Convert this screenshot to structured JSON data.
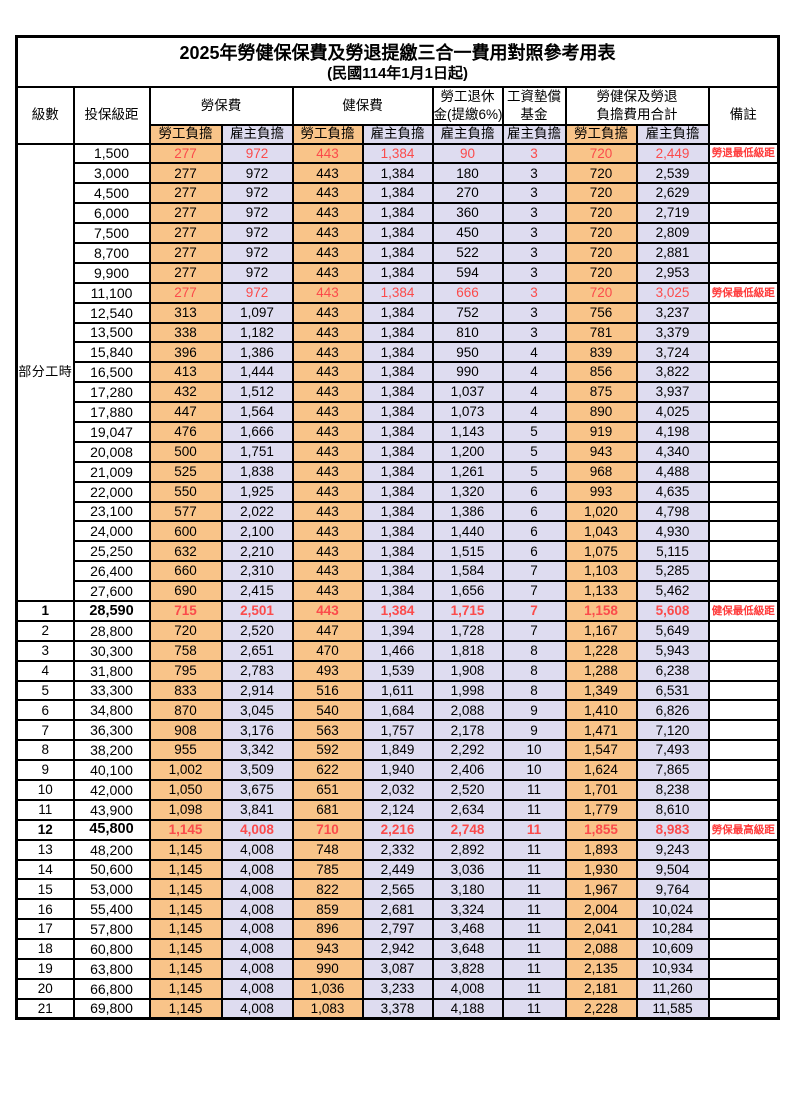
{
  "title": "2025年勞健保保費及勞退提繳三合一費用對照參考用表",
  "subtitle": "(民國114年1月1日起)",
  "header": {
    "level": "級數",
    "bracket": "投保級距",
    "labor_insurance": "勞保費",
    "health_insurance": "健保費",
    "pension_line1": "勞工退休",
    "pension_line2": "金(提繳6%)",
    "wage_fund_line1": "工資墊償",
    "wage_fund_line2": "基金",
    "total_line1": "勞健保及勞退",
    "total_line2": "負擔費用合計",
    "remark": "備註",
    "employee_burden": "勞工負擔",
    "employer_burden": "雇主負擔"
  },
  "group_label_part_time": "部分工時",
  "colors": {
    "employee_col_bg": "#f9c489",
    "employer_col_bg": "#dedcf0",
    "highlight_value_red": "#fb4b4b",
    "remark_red": "#ff3b3b",
    "border": "#000000"
  },
  "part_time_row_count": 23,
  "rows": [
    {
      "level": "",
      "bracket": "1,500",
      "values": [
        "277",
        "972",
        "443",
        "1,384",
        "90",
        "3",
        "720",
        "2,449"
      ],
      "remark": "勞退最低級距",
      "red": true,
      "bold": false
    },
    {
      "level": "",
      "bracket": "3,000",
      "values": [
        "277",
        "972",
        "443",
        "1,384",
        "180",
        "3",
        "720",
        "2,539"
      ],
      "remark": "",
      "red": false,
      "bold": false
    },
    {
      "level": "",
      "bracket": "4,500",
      "values": [
        "277",
        "972",
        "443",
        "1,384",
        "270",
        "3",
        "720",
        "2,629"
      ],
      "remark": "",
      "red": false,
      "bold": false
    },
    {
      "level": "",
      "bracket": "6,000",
      "values": [
        "277",
        "972",
        "443",
        "1,384",
        "360",
        "3",
        "720",
        "2,719"
      ],
      "remark": "",
      "red": false,
      "bold": false
    },
    {
      "level": "",
      "bracket": "7,500",
      "values": [
        "277",
        "972",
        "443",
        "1,384",
        "450",
        "3",
        "720",
        "2,809"
      ],
      "remark": "",
      "red": false,
      "bold": false
    },
    {
      "level": "",
      "bracket": "8,700",
      "values": [
        "277",
        "972",
        "443",
        "1,384",
        "522",
        "3",
        "720",
        "2,881"
      ],
      "remark": "",
      "red": false,
      "bold": false
    },
    {
      "level": "",
      "bracket": "9,900",
      "values": [
        "277",
        "972",
        "443",
        "1,384",
        "594",
        "3",
        "720",
        "2,953"
      ],
      "remark": "",
      "red": false,
      "bold": false
    },
    {
      "level": "",
      "bracket": "11,100",
      "values": [
        "277",
        "972",
        "443",
        "1,384",
        "666",
        "3",
        "720",
        "3,025"
      ],
      "remark": "勞保最低級距",
      "red": true,
      "bold": false
    },
    {
      "level": "",
      "bracket": "12,540",
      "values": [
        "313",
        "1,097",
        "443",
        "1,384",
        "752",
        "3",
        "756",
        "3,237"
      ],
      "remark": "",
      "red": false,
      "bold": false
    },
    {
      "level": "",
      "bracket": "13,500",
      "values": [
        "338",
        "1,182",
        "443",
        "1,384",
        "810",
        "3",
        "781",
        "3,379"
      ],
      "remark": "",
      "red": false,
      "bold": false
    },
    {
      "level": "",
      "bracket": "15,840",
      "values": [
        "396",
        "1,386",
        "443",
        "1,384",
        "950",
        "4",
        "839",
        "3,724"
      ],
      "remark": "",
      "red": false,
      "bold": false
    },
    {
      "level": "",
      "bracket": "16,500",
      "values": [
        "413",
        "1,444",
        "443",
        "1,384",
        "990",
        "4",
        "856",
        "3,822"
      ],
      "remark": "",
      "red": false,
      "bold": false
    },
    {
      "level": "",
      "bracket": "17,280",
      "values": [
        "432",
        "1,512",
        "443",
        "1,384",
        "1,037",
        "4",
        "875",
        "3,937"
      ],
      "remark": "",
      "red": false,
      "bold": false
    },
    {
      "level": "",
      "bracket": "17,880",
      "values": [
        "447",
        "1,564",
        "443",
        "1,384",
        "1,073",
        "4",
        "890",
        "4,025"
      ],
      "remark": "",
      "red": false,
      "bold": false
    },
    {
      "level": "",
      "bracket": "19,047",
      "values": [
        "476",
        "1,666",
        "443",
        "1,384",
        "1,143",
        "5",
        "919",
        "4,198"
      ],
      "remark": "",
      "red": false,
      "bold": false
    },
    {
      "level": "",
      "bracket": "20,008",
      "values": [
        "500",
        "1,751",
        "443",
        "1,384",
        "1,200",
        "5",
        "943",
        "4,340"
      ],
      "remark": "",
      "red": false,
      "bold": false
    },
    {
      "level": "",
      "bracket": "21,009",
      "values": [
        "525",
        "1,838",
        "443",
        "1,384",
        "1,261",
        "5",
        "968",
        "4,488"
      ],
      "remark": "",
      "red": false,
      "bold": false
    },
    {
      "level": "",
      "bracket": "22,000",
      "values": [
        "550",
        "1,925",
        "443",
        "1,384",
        "1,320",
        "6",
        "993",
        "4,635"
      ],
      "remark": "",
      "red": false,
      "bold": false
    },
    {
      "level": "",
      "bracket": "23,100",
      "values": [
        "577",
        "2,022",
        "443",
        "1,384",
        "1,386",
        "6",
        "1,020",
        "4,798"
      ],
      "remark": "",
      "red": false,
      "bold": false
    },
    {
      "level": "",
      "bracket": "24,000",
      "values": [
        "600",
        "2,100",
        "443",
        "1,384",
        "1,440",
        "6",
        "1,043",
        "4,930"
      ],
      "remark": "",
      "red": false,
      "bold": false
    },
    {
      "level": "",
      "bracket": "25,250",
      "values": [
        "632",
        "2,210",
        "443",
        "1,384",
        "1,515",
        "6",
        "1,075",
        "5,115"
      ],
      "remark": "",
      "red": false,
      "bold": false
    },
    {
      "level": "",
      "bracket": "26,400",
      "values": [
        "660",
        "2,310",
        "443",
        "1,384",
        "1,584",
        "7",
        "1,103",
        "5,285"
      ],
      "remark": "",
      "red": false,
      "bold": false
    },
    {
      "level": "",
      "bracket": "27,600",
      "values": [
        "690",
        "2,415",
        "443",
        "1,384",
        "1,656",
        "7",
        "1,133",
        "5,462"
      ],
      "remark": "",
      "red": false,
      "bold": false
    },
    {
      "level": "1",
      "bracket": "28,590",
      "values": [
        "715",
        "2,501",
        "443",
        "1,384",
        "1,715",
        "7",
        "1,158",
        "5,608"
      ],
      "remark": "健保最低級距",
      "red": true,
      "bold": true
    },
    {
      "level": "2",
      "bracket": "28,800",
      "values": [
        "720",
        "2,520",
        "447",
        "1,394",
        "1,728",
        "7",
        "1,167",
        "5,649"
      ],
      "remark": "",
      "red": false,
      "bold": false
    },
    {
      "level": "3",
      "bracket": "30,300",
      "values": [
        "758",
        "2,651",
        "470",
        "1,466",
        "1,818",
        "8",
        "1,228",
        "5,943"
      ],
      "remark": "",
      "red": false,
      "bold": false
    },
    {
      "level": "4",
      "bracket": "31,800",
      "values": [
        "795",
        "2,783",
        "493",
        "1,539",
        "1,908",
        "8",
        "1,288",
        "6,238"
      ],
      "remark": "",
      "red": false,
      "bold": false
    },
    {
      "level": "5",
      "bracket": "33,300",
      "values": [
        "833",
        "2,914",
        "516",
        "1,611",
        "1,998",
        "8",
        "1,349",
        "6,531"
      ],
      "remark": "",
      "red": false,
      "bold": false
    },
    {
      "level": "6",
      "bracket": "34,800",
      "values": [
        "870",
        "3,045",
        "540",
        "1,684",
        "2,088",
        "9",
        "1,410",
        "6,826"
      ],
      "remark": "",
      "red": false,
      "bold": false
    },
    {
      "level": "7",
      "bracket": "36,300",
      "values": [
        "908",
        "3,176",
        "563",
        "1,757",
        "2,178",
        "9",
        "1,471",
        "7,120"
      ],
      "remark": "",
      "red": false,
      "bold": false
    },
    {
      "level": "8",
      "bracket": "38,200",
      "values": [
        "955",
        "3,342",
        "592",
        "1,849",
        "2,292",
        "10",
        "1,547",
        "7,493"
      ],
      "remark": "",
      "red": false,
      "bold": false
    },
    {
      "level": "9",
      "bracket": "40,100",
      "values": [
        "1,002",
        "3,509",
        "622",
        "1,940",
        "2,406",
        "10",
        "1,624",
        "7,865"
      ],
      "remark": "",
      "red": false,
      "bold": false
    },
    {
      "level": "10",
      "bracket": "42,000",
      "values": [
        "1,050",
        "3,675",
        "651",
        "2,032",
        "2,520",
        "11",
        "1,701",
        "8,238"
      ],
      "remark": "",
      "red": false,
      "bold": false
    },
    {
      "level": "11",
      "bracket": "43,900",
      "values": [
        "1,098",
        "3,841",
        "681",
        "2,124",
        "2,634",
        "11",
        "1,779",
        "8,610"
      ],
      "remark": "",
      "red": false,
      "bold": false
    },
    {
      "level": "12",
      "bracket": "45,800",
      "values": [
        "1,145",
        "4,008",
        "710",
        "2,216",
        "2,748",
        "11",
        "1,855",
        "8,983"
      ],
      "remark": "勞保最高級距",
      "red": true,
      "bold": true
    },
    {
      "level": "13",
      "bracket": "48,200",
      "values": [
        "1,145",
        "4,008",
        "748",
        "2,332",
        "2,892",
        "11",
        "1,893",
        "9,243"
      ],
      "remark": "",
      "red": false,
      "bold": false
    },
    {
      "level": "14",
      "bracket": "50,600",
      "values": [
        "1,145",
        "4,008",
        "785",
        "2,449",
        "3,036",
        "11",
        "1,930",
        "9,504"
      ],
      "remark": "",
      "red": false,
      "bold": false
    },
    {
      "level": "15",
      "bracket": "53,000",
      "values": [
        "1,145",
        "4,008",
        "822",
        "2,565",
        "3,180",
        "11",
        "1,967",
        "9,764"
      ],
      "remark": "",
      "red": false,
      "bold": false
    },
    {
      "level": "16",
      "bracket": "55,400",
      "values": [
        "1,145",
        "4,008",
        "859",
        "2,681",
        "3,324",
        "11",
        "2,004",
        "10,024"
      ],
      "remark": "",
      "red": false,
      "bold": false
    },
    {
      "level": "17",
      "bracket": "57,800",
      "values": [
        "1,145",
        "4,008",
        "896",
        "2,797",
        "3,468",
        "11",
        "2,041",
        "10,284"
      ],
      "remark": "",
      "red": false,
      "bold": false
    },
    {
      "level": "18",
      "bracket": "60,800",
      "values": [
        "1,145",
        "4,008",
        "943",
        "2,942",
        "3,648",
        "11",
        "2,088",
        "10,609"
      ],
      "remark": "",
      "red": false,
      "bold": false
    },
    {
      "level": "19",
      "bracket": "63,800",
      "values": [
        "1,145",
        "4,008",
        "990",
        "3,087",
        "3,828",
        "11",
        "2,135",
        "10,934"
      ],
      "remark": "",
      "red": false,
      "bold": false
    },
    {
      "level": "20",
      "bracket": "66,800",
      "values": [
        "1,145",
        "4,008",
        "1,036",
        "3,233",
        "4,008",
        "11",
        "2,181",
        "11,260"
      ],
      "remark": "",
      "red": false,
      "bold": false
    },
    {
      "level": "21",
      "bracket": "69,800",
      "values": [
        "1,145",
        "4,008",
        "1,083",
        "3,378",
        "4,188",
        "11",
        "2,228",
        "11,585"
      ],
      "remark": "",
      "red": false,
      "bold": false
    }
  ]
}
